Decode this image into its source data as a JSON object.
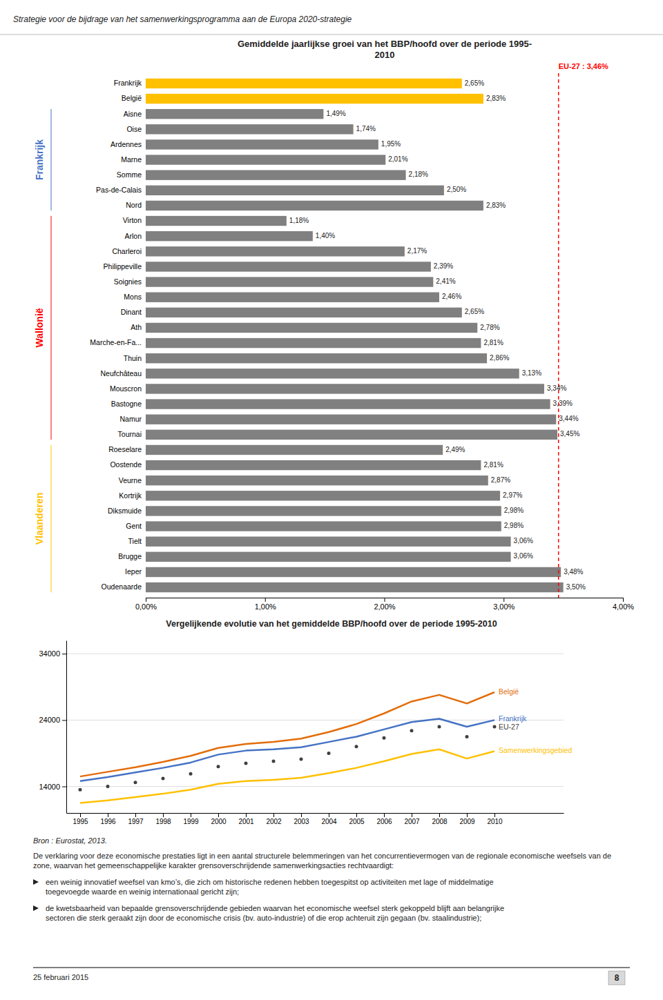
{
  "header": "Strategie voor de bijdrage van het samenwerkingsprogramma aan de Europa 2020-strategie",
  "source": "Bron : Eurostat, 2013.",
  "text": "De verklaring voor deze economische prestaties ligt in een aantal structurele belemmeringen van het concurrentievermogen van de regionale economische weefsels van de zone, waarvan het gemeenschappelijke karakter grensoverschrijdende samenwerkingsacties rechtvaardigt:",
  "bullets": [
    "een weinig innovatief weefsel van kmo’s, die zich om historische redenen hebben toegespitst op activiteiten met lage of middelmatige\ntoegevoegde waarde en weinig internationaal gericht zijn;",
    "de kwetsbaarheid van bepaalde grensoverschrijdende gebieden waarvan het economische weefsel sterk gekoppeld blijft aan belangrijke\nsectoren die sterk geraakt zijn door de economische crisis (bv. auto-industrie) of die erop achteruit zijn gegaan (bv. staalindustrie);"
  ],
  "date": "25 februari 2015",
  "page_number": "8",
  "chart_data": [
    {
      "type": "bar",
      "orientation": "horizontal",
      "title": "Gemiddelde jaarlijkse groei van het BBP/hoofd  over de periode 1995-\n2010",
      "categories": [
        "Frankrijk",
        "België",
        "Aisne",
        "Oise",
        "Ardennes",
        "Marne",
        "Somme",
        "Pas-de-Calais",
        "Nord",
        "Virton",
        "Arlon",
        "Charleroi",
        "Philippeville",
        "Soignies",
        "Mons",
        "Dinant",
        "Ath",
        "Marche-en-Fa...",
        "Thuin",
        "Neufchâteau",
        "Mouscron",
        "Bastogne",
        "Namur",
        "Tournai",
        "Roeselare",
        "Oostende",
        "Veurne",
        "Kortrijk",
        "Diksmuide",
        "Gent",
        "Tielt",
        "Brugge",
        "Ieper",
        "Oudenaarde"
      ],
      "values": [
        2.65,
        2.83,
        1.49,
        1.74,
        1.95,
        2.01,
        2.18,
        2.5,
        2.83,
        1.18,
        1.4,
        2.17,
        2.39,
        2.41,
        2.46,
        2.65,
        2.78,
        2.81,
        2.86,
        3.13,
        3.34,
        3.39,
        3.44,
        3.45,
        2.49,
        2.81,
        2.87,
        2.97,
        2.98,
        2.98,
        3.06,
        3.06,
        3.48,
        3.5
      ],
      "value_labels": [
        "2,65%",
        "2,83%",
        "1,49%",
        "1,74%",
        "1,95%",
        "2,01%",
        "2,18%",
        "2,50%",
        "2,83%",
        "1,18%",
        "1,40%",
        "2,17%",
        "2,39%",
        "2,41%",
        "2,46%",
        "2,65%",
        "2,78%",
        "2,81%",
        "2,86%",
        "3,13%",
        "3,34%",
        "3,39%",
        "3,44%",
        "3,45%",
        "2,49%",
        "2,81%",
        "2,87%",
        "2,97%",
        "2,98%",
        "2,98%",
        "3,06%",
        "3,06%",
        "3,48%",
        "3,50%"
      ],
      "colors": [
        "#FFC000",
        "#FFC000",
        "#808080",
        "#808080",
        "#808080",
        "#808080",
        "#808080",
        "#808080",
        "#808080",
        "#808080",
        "#808080",
        "#808080",
        "#808080",
        "#808080",
        "#808080",
        "#808080",
        "#808080",
        "#808080",
        "#808080",
        "#808080",
        "#808080",
        "#808080",
        "#808080",
        "#808080",
        "#808080",
        "#808080",
        "#808080",
        "#808080",
        "#808080",
        "#808080",
        "#808080",
        "#808080",
        "#808080",
        "#808080"
      ],
      "data_labels": true,
      "grid": false,
      "xlim": [
        0.0,
        4.0
      ],
      "xticks": [
        {
          "value": 0.0,
          "label": "0,00%"
        },
        {
          "value": 1.0,
          "label": "1,00%"
        },
        {
          "value": 2.0,
          "label": "2,00%"
        },
        {
          "value": 3.0,
          "label": "3,00%"
        },
        {
          "value": 4.0,
          "label": "4,00%"
        }
      ],
      "annotations": [
        {
          "x": 3.46,
          "text": "EU-27 : 3,46%",
          "color": "#FF0000"
        }
      ],
      "groups": [
        {
          "name": "Frankrijk",
          "color": "#4472C4",
          "categories": [
            "Aisne",
            "Oise",
            "Ardennes",
            "Marne",
            "Somme",
            "Pas-de-Calais",
            "Nord"
          ]
        },
        {
          "name": "Wallonië",
          "color": "#FF0000",
          "categories": [
            "Virton",
            "Arlon",
            "Charleroi",
            "Philippeville",
            "Soignies",
            "Mons",
            "Dinant",
            "Ath",
            "Marche-en-Fa...",
            "Thuin",
            "Neufchâteau",
            "Mouscron",
            "Bastogne",
            "Namur",
            "Tournai"
          ]
        },
        {
          "name": "Vlaanderen",
          "color": "#FFC000",
          "categories": [
            "Roeselare",
            "Oostende",
            "Veurne",
            "Kortrijk",
            "Diksmuide",
            "Gent",
            "Tielt",
            "Brugge",
            "Ieper",
            "Oudenaarde"
          ]
        }
      ]
    },
    {
      "type": "line",
      "title": "Vergelijkende evolutie van het gemiddelde BBP/hoofd over de periode 1995-2010",
      "x": [
        1995,
        1996,
        1997,
        1998,
        1999,
        2000,
        2001,
        2002,
        2003,
        2004,
        2005,
        2006,
        2007,
        2008,
        2009,
        2010
      ],
      "xlim": [
        1994.5,
        2012.5
      ],
      "xticks": [
        1995,
        1996,
        1997,
        1998,
        1999,
        2000,
        2001,
        2002,
        2003,
        2004,
        2005,
        2006,
        2007,
        2008,
        2009,
        2010
      ],
      "ylim": [
        10000,
        36000
      ],
      "yticks": [
        14000,
        24000,
        34000
      ],
      "grid": true,
      "series": [
        {
          "name": "België",
          "color": "#E36C09",
          "values": [
            15500,
            16200,
            16900,
            17700,
            18600,
            19800,
            20400,
            20700,
            21200,
            22200,
            23400,
            25000,
            26800,
            27800,
            26500,
            28200
          ]
        },
        {
          "name": "Frankrijk",
          "color": "#4472C4",
          "values": [
            14800,
            15400,
            16100,
            16800,
            17600,
            18800,
            19400,
            19600,
            19900,
            20700,
            21500,
            22600,
            23700,
            24200,
            23000,
            24000
          ]
        },
        {
          "name": "EU-27",
          "color": "#404040",
          "marker": "circle",
          "line_style": "none",
          "values": [
            13500,
            14000,
            14600,
            15200,
            15900,
            17000,
            17500,
            17800,
            18100,
            19000,
            20000,
            21300,
            22400,
            23000,
            21500,
            23000
          ]
        },
        {
          "name": "Samenwerkingsgebied",
          "color": "#FFC000",
          "values": [
            11500,
            11900,
            12400,
            12900,
            13500,
            14400,
            14800,
            15000,
            15300,
            16000,
            16800,
            17800,
            18900,
            19600,
            18200,
            19300
          ]
        }
      ]
    }
  ]
}
